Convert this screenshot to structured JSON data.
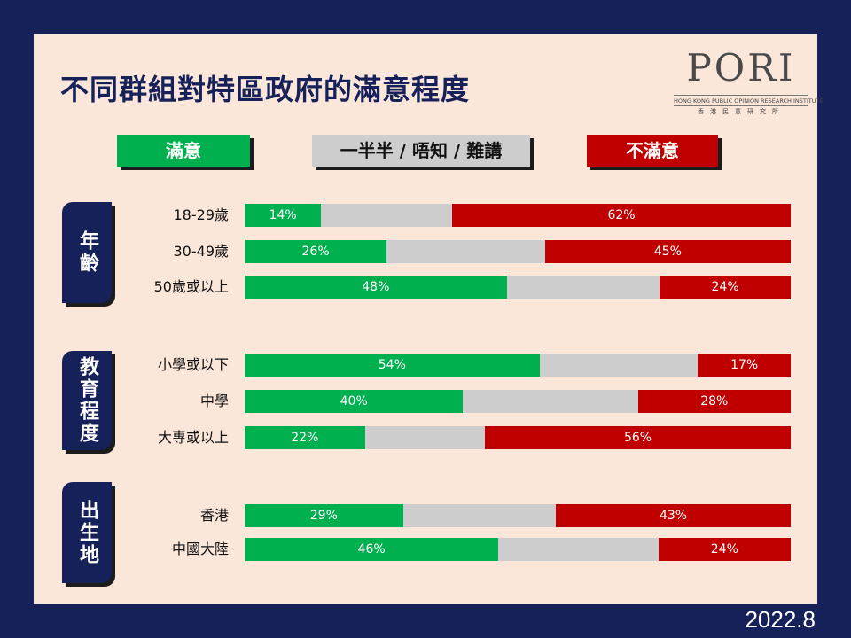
{
  "title": "不同群組對特區政府的滿意程度",
  "logo": {
    "name": "PORI",
    "subtitle": "HONG KONG PUBLIC OPINION RESEARCH INSTITUTE",
    "chinese": "香港民意研究所"
  },
  "date": "2022.8",
  "colors": {
    "satisfied": "#00b04f",
    "neutral": "#cdcdcd",
    "dissatisfied": "#c00000"
  },
  "chart_data": {
    "type": "bar",
    "stacked": true,
    "orientation": "horizontal",
    "legend": [
      "滿意",
      "一半半 / 唔知 / 難講",
      "不滿意"
    ],
    "legend_position": "top",
    "groups": [
      {
        "name": "年齡",
        "categories": [
          "18-29歲",
          "30-49歲",
          "50歲或以上"
        ],
        "satisfied": [
          14,
          26,
          48
        ],
        "neutral": [
          24,
          29,
          28
        ],
        "dissatisfied": [
          62,
          45,
          24
        ]
      },
      {
        "name": "教育程度",
        "categories": [
          "小學或以下",
          "中學",
          "大專或以上"
        ],
        "satisfied": [
          54,
          40,
          22
        ],
        "neutral": [
          29,
          32,
          22
        ],
        "dissatisfied": [
          17,
          28,
          56
        ]
      },
      {
        "name": "出生地",
        "categories": [
          "香港",
          "中國大陸"
        ],
        "satisfied": [
          29,
          46
        ],
        "neutral": [
          28,
          29
        ],
        "dissatisfied": [
          43,
          24
        ]
      }
    ]
  }
}
